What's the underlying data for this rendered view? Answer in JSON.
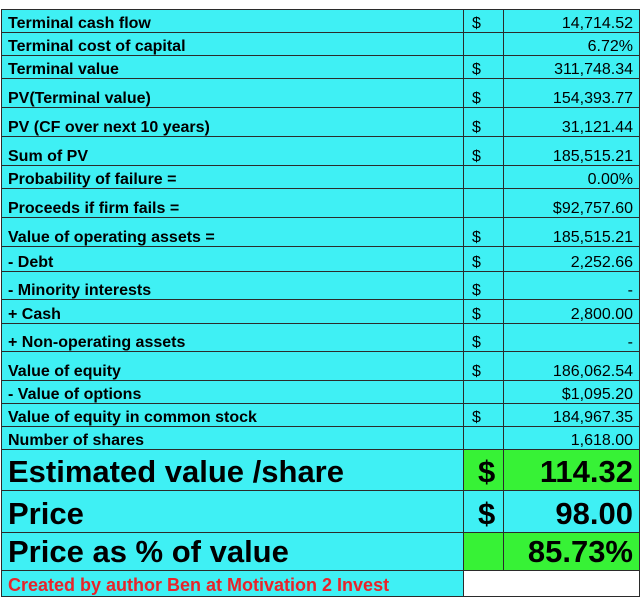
{
  "rows": [
    {
      "label": "Terminal cash flow",
      "cur": "$",
      "value": "14,714.52"
    },
    {
      "label": "Terminal cost of capital",
      "cur": "",
      "value": "6.72%"
    },
    {
      "label": "Terminal value",
      "cur": "$",
      "value": "311,748.34"
    },
    {
      "label": "PV(Terminal value)",
      "cur": "$",
      "value": "154,393.77"
    },
    {
      "label": "PV (CF over next 10 years)",
      "cur": "$",
      "value": "31,121.44"
    },
    {
      "label": "Sum of PV",
      "cur": "$",
      "value": "185,515.21"
    },
    {
      "label": "Probability of failure =",
      "cur": "",
      "value": "0.00%"
    },
    {
      "label": "Proceeds if firm fails =",
      "cur": "",
      "value": "$92,757.60"
    },
    {
      "label": "Value of operating assets =",
      "cur": "$",
      "value": "185,515.21"
    },
    {
      "label": " - Debt",
      "cur": "$",
      "value": "2,252.66"
    },
    {
      "label": " - Minority interests",
      "cur": "$",
      "value": "-"
    },
    {
      "label": " +  Cash",
      "cur": "$",
      "value": "2,800.00"
    },
    {
      "label": " + Non-operating assets",
      "cur": "$",
      "value": "-"
    },
    {
      "label": "Value of equity",
      "cur": "$",
      "value": "186,062.54"
    },
    {
      "label": " - Value of options",
      "cur": "",
      "value": "$1,095.20"
    },
    {
      "label": "Value of equity in common stock",
      "cur": "$",
      "value": "184,967.35"
    },
    {
      "label": "Number of shares",
      "cur": "",
      "value": "1,618.00"
    }
  ],
  "summary": {
    "estimated_label": "Estimated value /share",
    "estimated_cur": "$",
    "estimated_value": "114.32",
    "price_label": "Price",
    "price_cur": "$",
    "price_value": "98.00",
    "pct_label": "Price as % of value",
    "pct_value": "85.73%"
  },
  "credit": "Created by author Ben at Motivation 2 Invest",
  "colors": {
    "cell_bg": "#3ff0f4",
    "highlight_bg": "#37f236",
    "accent_red": "#e8242a"
  }
}
